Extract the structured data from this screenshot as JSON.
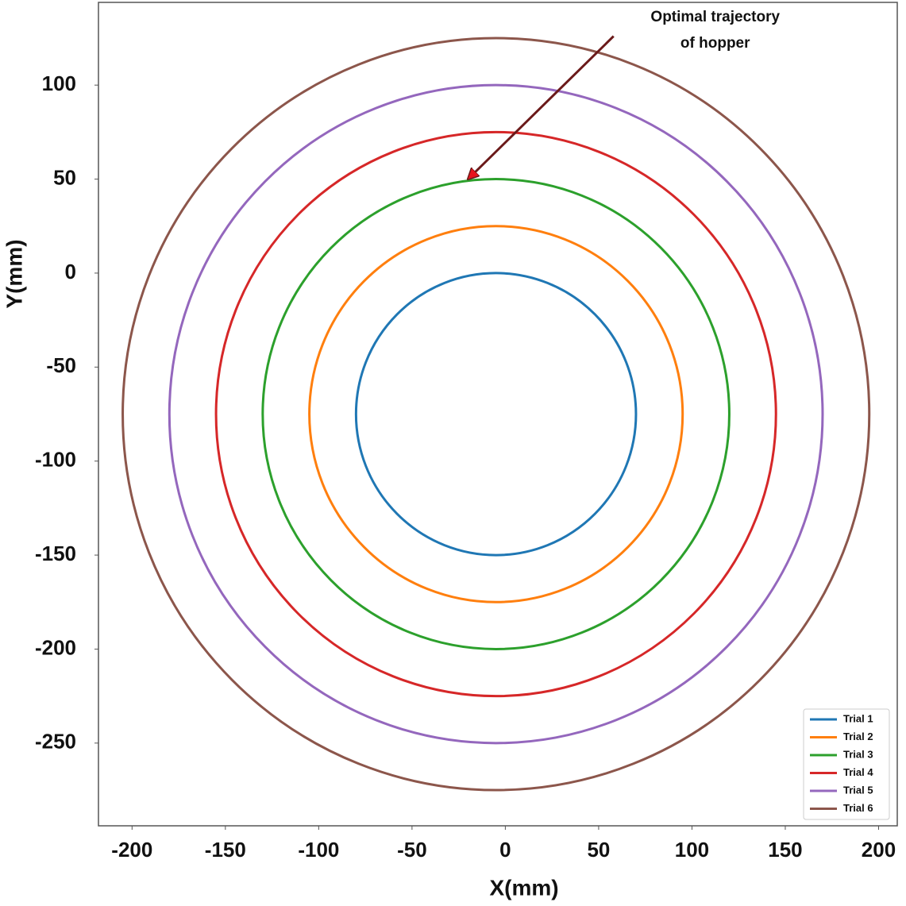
{
  "chart_data": {
    "type": "circle",
    "x_label": "X(mm)",
    "y_label": "Y(mm)",
    "xlim": [
      -218,
      210
    ],
    "ylim": [
      -294,
      144
    ],
    "xticks": [
      -200,
      -150,
      -100,
      -50,
      0,
      50,
      100,
      150,
      200
    ],
    "yticks": [
      -250,
      -200,
      -150,
      -100,
      -50,
      0,
      50,
      100
    ],
    "grid": false,
    "legend": "lower right",
    "series": [
      {
        "name": "Trial 1",
        "color": "#1f77b4",
        "cx": -5,
        "cy": -75,
        "radius": 75
      },
      {
        "name": "Trial 2",
        "color": "#ff7f0e",
        "cx": -5,
        "cy": -75,
        "radius": 100
      },
      {
        "name": "Trial 3",
        "color": "#2ca02c",
        "cx": -5,
        "cy": -75,
        "radius": 125
      },
      {
        "name": "Trial 4",
        "color": "#d62728",
        "cx": -5,
        "cy": -75,
        "radius": 150
      },
      {
        "name": "Trial 5",
        "color": "#9467bd",
        "cx": -5,
        "cy": -75,
        "radius": 175
      },
      {
        "name": "Trial 6",
        "color": "#8c564b",
        "cx": -5,
        "cy": -75,
        "radius": 200
      }
    ],
    "annotation": {
      "text": [
        "Optimal trajectory",
        "of hopper"
      ],
      "xy": [
        -20,
        50
      ],
      "xytext": [
        58,
        126
      ]
    }
  }
}
